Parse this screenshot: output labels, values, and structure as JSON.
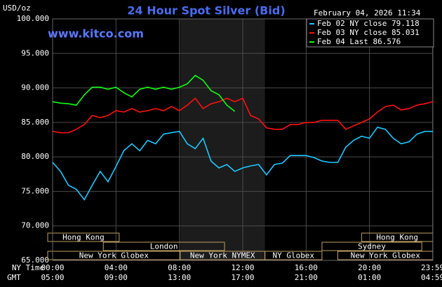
{
  "chart_data": {
    "type": "line",
    "title": "24 Hour Spot Silver (Bid)",
    "source": "www.kitco.com",
    "timestamp": "February 04, 2026 11:34",
    "y_unit": "USD/oz",
    "x_row_labels": [
      "NY Time",
      "GMT"
    ],
    "x": [
      0,
      0.5,
      1,
      1.5,
      2,
      2.5,
      3,
      3.5,
      4,
      4.5,
      5,
      5.5,
      6,
      6.5,
      7,
      7.5,
      8,
      8.5,
      9,
      9.5,
      10,
      10.5,
      11,
      11.5,
      12,
      12.5,
      13,
      13.5,
      14,
      14.5,
      15,
      15.5,
      16,
      16.5,
      17,
      17.5,
      18,
      18.5,
      19,
      19.5,
      20,
      20.5,
      21,
      21.5,
      22,
      22.5,
      23,
      23.5,
      24
    ],
    "xlim": [
      0,
      24
    ],
    "xticks": [
      {
        "value": 0,
        "label": "00:00"
      },
      {
        "value": 4,
        "label": "04:00"
      },
      {
        "value": 8,
        "label": "08:00"
      },
      {
        "value": 12,
        "label": "12:00"
      },
      {
        "value": 16,
        "label": "16:00"
      },
      {
        "value": 20,
        "label": "20:00"
      },
      {
        "value": 23.983,
        "label": "23:59"
      }
    ],
    "gmt_labels": [
      "05:00",
      "09:00",
      "13:00",
      "17:00",
      "21:00",
      "01:00",
      "04:59"
    ],
    "ylim": [
      65,
      100
    ],
    "yticks": [
      {
        "value": 65,
        "label": "65.000"
      },
      {
        "value": 70,
        "label": "70.000"
      },
      {
        "value": 75,
        "label": "75.000"
      },
      {
        "value": 80,
        "label": "80.000"
      },
      {
        "value": 85,
        "label": "85.000"
      },
      {
        "value": 90,
        "label": "90.000"
      },
      {
        "value": 95,
        "label": "95.000"
      },
      {
        "value": 100,
        "label": "100.000"
      }
    ],
    "grid": true,
    "series": [
      {
        "name": "Feb 02 NY close 79.118",
        "color": "#1ec8ff",
        "values": [
          79.2,
          77.9,
          75.9,
          75.3,
          73.8,
          75.9,
          77.9,
          76.4,
          78.6,
          80.9,
          81.9,
          80.9,
          82.4,
          81.9,
          83.3,
          83.5,
          83.7,
          81.9,
          81.2,
          82.7,
          79.4,
          78.4,
          78.9,
          77.9,
          78.4,
          78.7,
          78.9,
          77.4,
          78.9,
          79.1,
          80.2,
          80.2,
          80.2,
          79.9,
          79.4,
          79.2,
          79.2,
          81.4,
          82.4,
          83.0,
          82.7,
          84.3,
          84.0,
          82.7,
          81.9,
          82.2,
          83.3,
          83.7,
          83.7
        ]
      },
      {
        "name": "Feb 03 NY close 85.031",
        "color": "#ff1010",
        "values": [
          83.7,
          83.5,
          83.5,
          84.0,
          84.7,
          86.0,
          85.7,
          86.0,
          86.7,
          86.5,
          87.0,
          86.5,
          86.7,
          87.0,
          86.7,
          87.3,
          86.7,
          87.5,
          88.5,
          87.0,
          87.7,
          88.0,
          88.5,
          88.0,
          88.5,
          86.0,
          85.5,
          84.2,
          84.0,
          84.0,
          84.7,
          84.7,
          85.0,
          85.0,
          85.3,
          85.3,
          85.3,
          84.0,
          84.5,
          85.0,
          85.5,
          86.5,
          87.3,
          87.5,
          86.8,
          87.0,
          87.5,
          87.7,
          88.0
        ]
      },
      {
        "name": "Feb 04 Last 86.576",
        "color": "#10ff10",
        "values": [
          88.0,
          87.8,
          87.7,
          87.5,
          89.0,
          90.1,
          90.1,
          89.8,
          90.1,
          89.3,
          88.7,
          89.8,
          90.1,
          89.8,
          90.1,
          89.8,
          90.1,
          90.6,
          91.8,
          91.1,
          89.6,
          89.0,
          87.5,
          86.6,
          null,
          null,
          null,
          null,
          null,
          null,
          null,
          null,
          null,
          null,
          null,
          null,
          null,
          null,
          null,
          null,
          null,
          null,
          null,
          null,
          null,
          null,
          null,
          null,
          null
        ]
      }
    ],
    "session_rows": [
      [
        {
          "label": "Hong Kong",
          "start": 0,
          "end": 4.2
        },
        {
          "label": "Hong Kong",
          "start": 19.5,
          "end": 24
        }
      ],
      [
        {
          "label": "London",
          "start": 3.2,
          "end": 10.85
        },
        {
          "label": "Sydney",
          "start": 17,
          "end": 23.3
        }
      ],
      [
        {
          "label": "New York Globex",
          "start": 0,
          "end": 8.05
        },
        {
          "label": "New York NYMEX",
          "start": 8.05,
          "end": 13.4,
          "highlight": true
        },
        {
          "label": "NY Globex",
          "start": 13.4,
          "end": 17
        },
        {
          "label": "New York Globex",
          "start": 18,
          "end": 24
        }
      ]
    ]
  }
}
